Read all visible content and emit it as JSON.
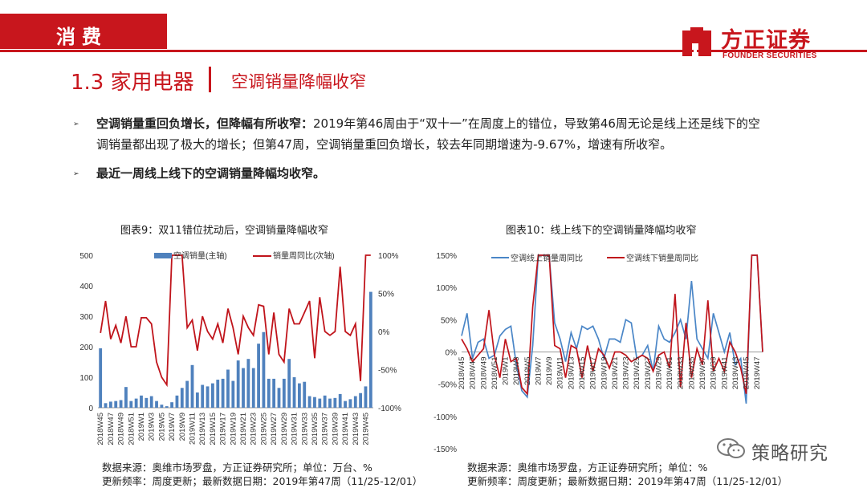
{
  "header": {
    "section_label": "消费"
  },
  "logo": {
    "cn": "方正证券",
    "en": "FOUNDER SECURITIES"
  },
  "title": {
    "main": "1.3 家用电器",
    "sub": "空调销量降幅收窄"
  },
  "bullets": [
    {
      "bold": "空调销量重回负增长，但降幅有所收窄：",
      "text": "2019年第46周由于“双十一”在周度上的错位，导致第46周无论是线上还是线下的空调销量都出现了极大的增长；但第47周，空调销量重回负增长，较去年同期增速为-9.67%，增速有所收窄。"
    },
    {
      "bold": "最近一周线上线下的空调销量降幅均收窄。",
      "text": ""
    }
  ],
  "colors": {
    "brand_red": "#c8161d",
    "bar_blue": "#4f81bd",
    "line_red": "#c0141b",
    "line_blue": "#4a86c7"
  },
  "chart_data": [
    {
      "type": "bar",
      "title": "图表9：双11错位扰动后，空调销量降幅收窄",
      "legend": [
        "空调销量(主轴)",
        "销量周同比(次轴)"
      ],
      "legend_position": "top",
      "y_left": {
        "min": 0,
        "max": 500,
        "ticks": [
          "0",
          "100",
          "200",
          "300",
          "400",
          "500"
        ]
      },
      "y_right": {
        "min": -100,
        "max": 100,
        "ticks": [
          "-100%",
          "-50%",
          "0%",
          "50%",
          "100%"
        ]
      },
      "x_tick_labels": [
        "2018W45",
        "2018W47",
        "2018W49",
        "2018W51",
        "2019W1",
        "2019W3",
        "2019W5",
        "2019W7",
        "2019W9",
        "2019W11",
        "2019W13",
        "2019W15",
        "2019W17",
        "2019W19",
        "2019W21",
        "2019W23",
        "2019W25",
        "2019W27",
        "2019W29",
        "2019W31",
        "2019W33",
        "2019W35",
        "2019W37",
        "2019W39",
        "2019W41",
        "2019W43",
        "2019W45"
      ],
      "series": [
        {
          "name": "空调销量(主轴)",
          "kind": "bar",
          "axis": "left",
          "values": [
            195,
            15,
            20,
            22,
            25,
            68,
            22,
            30,
            40,
            32,
            38,
            22,
            10,
            5,
            18,
            40,
            65,
            88,
            140,
            50,
            75,
            70,
            80,
            92,
            95,
            125,
            88,
            155,
            130,
            160,
            130,
            210,
            248,
            95,
            95,
            65,
            95,
            160,
            100,
            80,
            85,
            38,
            35,
            30,
            40,
            30,
            32,
            45,
            22,
            28,
            38,
            48,
            70,
            380
          ]
        },
        {
          "name": "销量周同比(次轴)",
          "kind": "line",
          "axis": "right",
          "values": [
            -2,
            40,
            -10,
            8,
            -15,
            20,
            -20,
            -20,
            18,
            18,
            10,
            -40,
            -60,
            -70,
            100,
            100,
            100,
            5,
            15,
            -25,
            20,
            0,
            -10,
            10,
            -15,
            30,
            5,
            -30,
            20,
            5,
            -5,
            35,
            33,
            -30,
            25,
            -30,
            -40,
            30,
            10,
            10,
            25,
            40,
            -35,
            45,
            0,
            -5,
            0,
            85,
            0,
            -5,
            10,
            -65,
            100,
            100
          ]
        }
      ]
    },
    {
      "type": "line",
      "title": "图表10：线上线下的空调销量降幅均收窄",
      "legend": [
        "空调线上销量周同比",
        "空调线下销量周同比"
      ],
      "legend_position": "top",
      "y": {
        "min": -150,
        "max": 150,
        "ticks": [
          "-150%",
          "-100%",
          "-50%",
          "0%",
          "50%",
          "100%",
          "150%"
        ]
      },
      "x_tick_labels": [
        "2018W45",
        "2018W47",
        "2018W49",
        "2018W51",
        "2019W1",
        "2019W3",
        "2019W5",
        "2019W7",
        "2019W9",
        "2019W11",
        "2019W13",
        "2019W15",
        "2019W17",
        "2019W19",
        "2019W21",
        "2019W23",
        "2019W25",
        "2019W27",
        "2019W29",
        "2019W31",
        "2019W33",
        "2019W35",
        "2019W37",
        "2019W39",
        "2019W41",
        "2019W43",
        "2019W45",
        "2019W47"
      ],
      "series": [
        {
          "name": "空调线上销量周同比",
          "values": [
            25,
            60,
            -10,
            15,
            20,
            -10,
            -5,
            25,
            35,
            40,
            -20,
            -60,
            -70,
            10,
            150,
            150,
            150,
            45,
            20,
            -15,
            30,
            5,
            40,
            35,
            40,
            20,
            -10,
            20,
            20,
            15,
            50,
            45,
            -10,
            -5,
            10,
            -30,
            40,
            20,
            15,
            30,
            50,
            20,
            110,
            20,
            5,
            -10,
            60,
            30,
            0,
            30,
            -20,
            -10,
            -80,
            150,
            150,
            0
          ]
        },
        {
          "name": "空调线下销量周同比",
          "values": [
            20,
            5,
            -15,
            -5,
            5,
            65,
            -5,
            -40,
            20,
            -15,
            -10,
            -55,
            -65,
            70,
            150,
            150,
            150,
            10,
            5,
            -40,
            10,
            5,
            -40,
            10,
            -30,
            5,
            -5,
            -25,
            0,
            0,
            -5,
            -15,
            -10,
            -5,
            -10,
            -30,
            -5,
            0,
            -25,
            90,
            -55,
            45,
            -40,
            5,
            -20,
            80,
            -30,
            -10,
            -30,
            15,
            0,
            -25,
            -65,
            150,
            150,
            0
          ]
        }
      ]
    }
  ],
  "sources": [
    {
      "line1": "数据来源：奥维市场罗盘，方正证券研究所；单位：万台、%",
      "line2": "更新频率：周度更新；最新数据日期：2019年第47周（11/25-12/01）"
    },
    {
      "line1": "数据来源：奥维市场罗盘，方正证券研究所；单位：%",
      "line2": "更新频率：周度更新；最新数据日期：2019年第47周（11/25-12/01）"
    }
  ],
  "watermark": "策略研究"
}
